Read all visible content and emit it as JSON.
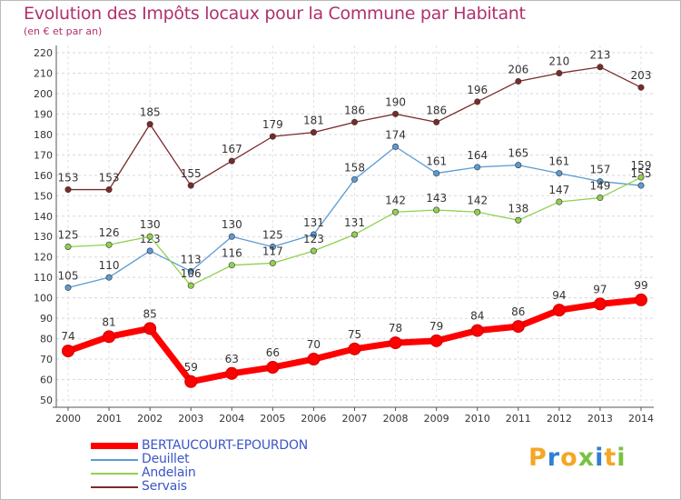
{
  "chart_data": {
    "type": "line",
    "title": "Evolution des Impôts locaux pour la Commune par Habitant",
    "subtitle": "(en € et par an)",
    "xlabel": "",
    "ylabel": "",
    "x": [
      "2000",
      "2001",
      "2002",
      "2003",
      "2004",
      "2005",
      "2006",
      "2007",
      "2008",
      "2009",
      "2010",
      "2011",
      "2012",
      "2013",
      "2014"
    ],
    "ylim": [
      50,
      220
    ],
    "yticks": [
      50,
      60,
      70,
      80,
      90,
      100,
      110,
      120,
      130,
      140,
      150,
      160,
      170,
      180,
      190,
      200,
      210,
      220
    ],
    "grid": "horizontal dashed",
    "legend_position": "bottom-left",
    "series": [
      {
        "name": "BERTAUCOURT-EPOURDON",
        "color": "#ff0000",
        "emphasis": true,
        "values": [
          74,
          81,
          85,
          59,
          63,
          66,
          70,
          75,
          78,
          79,
          84,
          86,
          94,
          97,
          99
        ]
      },
      {
        "name": "Deuillet",
        "color": "#5b9bd5",
        "values": [
          105,
          110,
          123,
          113,
          130,
          125,
          131,
          158,
          174,
          161,
          164,
          165,
          161,
          157,
          155
        ]
      },
      {
        "name": "Andelain",
        "color": "#92d050",
        "values": [
          125,
          126,
          130,
          106,
          116,
          117,
          123,
          131,
          142,
          143,
          142,
          138,
          147,
          149,
          159
        ]
      },
      {
        "name": "Servais",
        "color": "#7b2a2a",
        "values": [
          153,
          153,
          185,
          155,
          167,
          179,
          181,
          186,
          190,
          186,
          196,
          206,
          210,
          213,
          203
        ]
      }
    ]
  },
  "brand": {
    "letters": [
      "P",
      "r",
      "o",
      "x",
      "i",
      "t",
      "i"
    ],
    "colors": [
      "#f5a623",
      "#2f7fd4",
      "#f5a623",
      "#7ac143",
      "#2f7fd4",
      "#f5a623",
      "#7ac143"
    ]
  }
}
